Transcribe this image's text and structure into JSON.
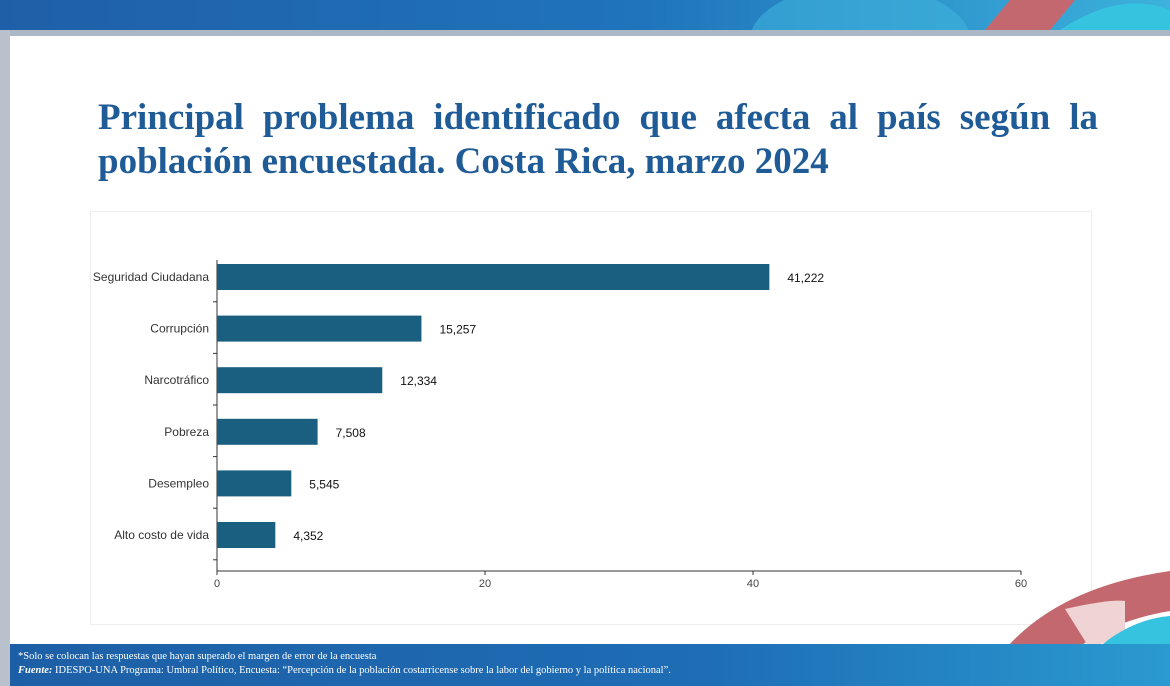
{
  "title": "Principal problema identificado que afecta al país según la población encuestada. Costa Rica, marzo 2024",
  "footer": {
    "note": "*Solo se colocan las respuestas que hayan superado el margen de error de la encuesta",
    "source_label": "Fuente:",
    "source_text": " IDESPO-UNA Programa: Umbral Político, Encuesta: “Percepción de la población costarricense sobre la labor del gobierno y la política nacional”."
  },
  "colors": {
    "bar": "#1a5f80",
    "title": "#1f5b96",
    "band_blue": "#1f5fa8",
    "accent_red": "#c4686f",
    "accent_cyan": "#36c3df"
  },
  "chart_data": {
    "type": "bar",
    "orientation": "horizontal",
    "categories": [
      "Seguridad Ciudadana",
      "Corrupción",
      "Narcotráfico",
      "Pobreza",
      "Desempleo",
      "Alto costo de vida"
    ],
    "values": [
      41.222,
      15.257,
      12.334,
      7.508,
      5.545,
      4.352
    ],
    "value_labels": [
      "41,222",
      "15,257",
      "12,334",
      "7,508",
      "5,545",
      "4,352"
    ],
    "xlim": [
      0,
      60
    ],
    "xticks": [
      0,
      20,
      40,
      60
    ],
    "grid": false,
    "legend": "none"
  }
}
